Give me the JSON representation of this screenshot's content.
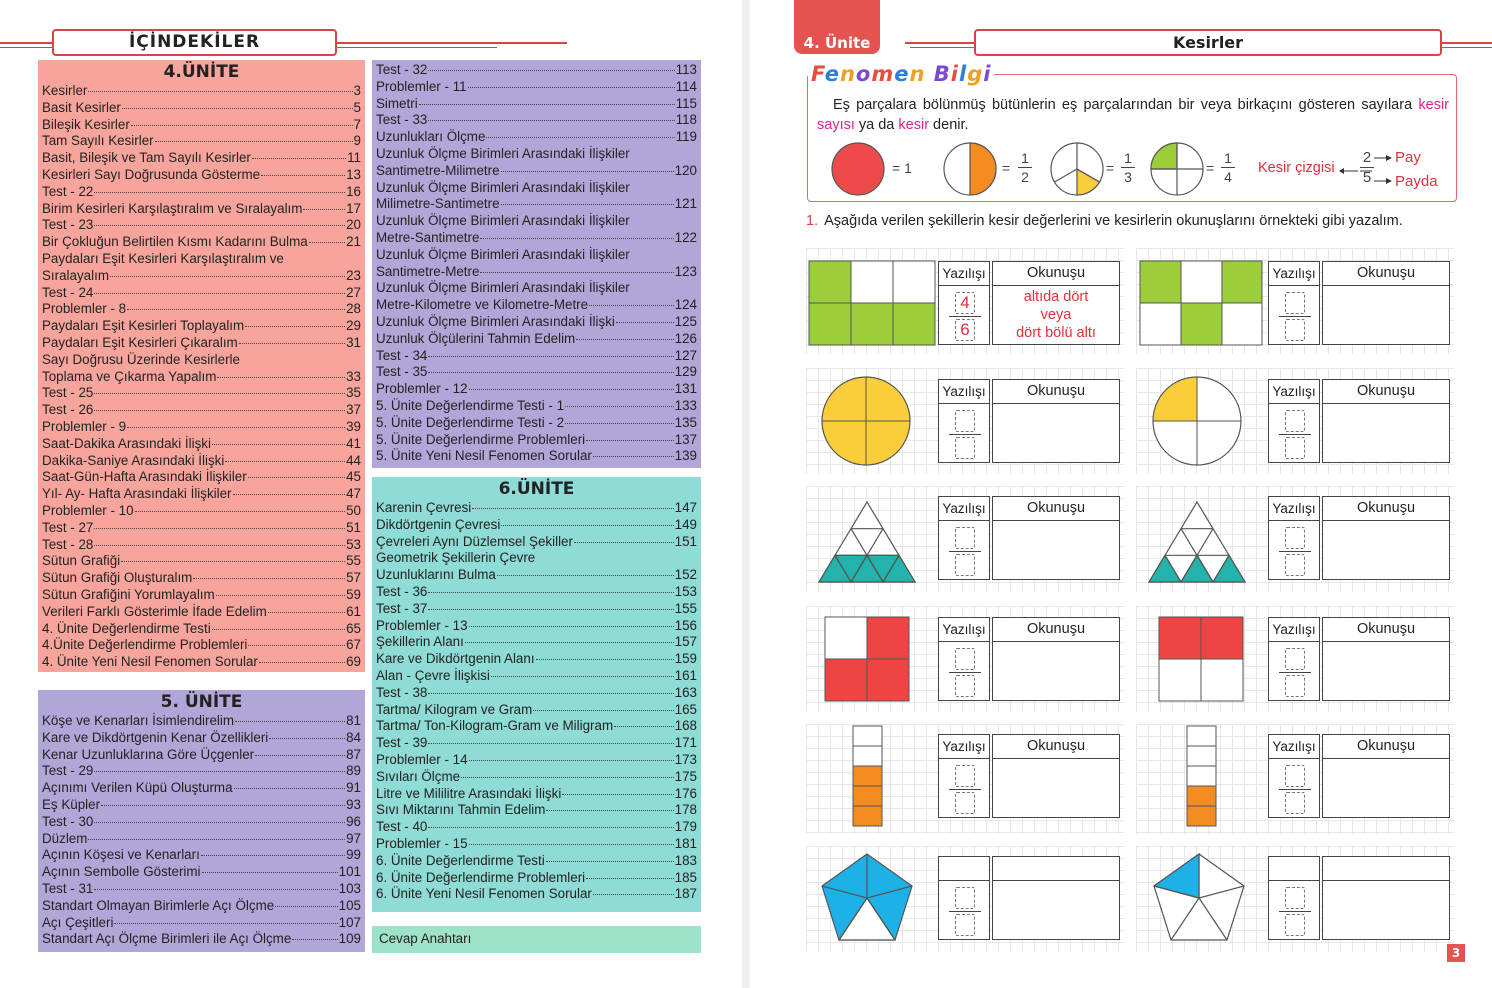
{
  "left_page": {
    "toc_title": "İÇİNDEKİLER",
    "unit4": {
      "title": "4.ÜNİTE",
      "entries": [
        {
          "t": "Kesirler",
          "p": "3"
        },
        {
          "t": "Basit Kesirler",
          "p": "5"
        },
        {
          "t": "Bileşik Kesirler",
          "p": "7"
        },
        {
          "t": "Tam Sayılı Kesirler",
          "p": "9"
        },
        {
          "t": "Basit, Bileşik ve Tam Sayılı Kesirler",
          "p": "11"
        },
        {
          "t": "Kesirleri Sayı Doğrusunda Gösterme",
          "p": "13"
        },
        {
          "t": "Test - 22",
          "p": "16"
        },
        {
          "t": "Birim Kesirleri Karşılaştıralım ve Sıralayalım",
          "p": "17"
        },
        {
          "t": "Test - 23",
          "p": "20"
        },
        {
          "t": "Bir Çokluğun Belirtilen Kısmı Kadarını Bulma",
          "p": "21"
        },
        {
          "t": "Paydaları Eşit Kesirleri Karşılaştıralım ve",
          "p": ""
        },
        {
          "t": "Sıralayalım",
          "p": "23"
        },
        {
          "t": "Test - 24",
          "p": "27"
        },
        {
          "t": "Problemler - 8",
          "p": "28"
        },
        {
          "t": "Paydaları Eşit Kesirleri Toplayalım",
          "p": "29"
        },
        {
          "t": "Paydaları Eşit Kesirleri Çıkaralım",
          "p": "31"
        },
        {
          "t": "Sayı Doğrusu Üzerinde Kesirlerle",
          "p": ""
        },
        {
          "t": "Toplama ve Çıkarma Yapalım",
          "p": "33"
        },
        {
          "t": "Test - 25",
          "p": "35"
        },
        {
          "t": "Test - 26",
          "p": "37"
        },
        {
          "t": "Problemler - 9",
          "p": "39"
        },
        {
          "t": "Saat-Dakika Arasındaki İlişki",
          "p": "41"
        },
        {
          "t": "Dakika-Saniye Arasındaki İlişki",
          "p": "44"
        },
        {
          "t": "Saat-Gün-Hafta Arasındaki İlişkiler",
          "p": "45"
        },
        {
          "t": "Yıl- Ay- Hafta Arasındaki İlişkiler",
          "p": "47"
        },
        {
          "t": "Problemler - 10",
          "p": "50"
        },
        {
          "t": "Test - 27",
          "p": "51"
        },
        {
          "t": "Test - 28",
          "p": "53"
        },
        {
          "t": "Sütun Grafiği",
          "p": "55"
        },
        {
          "t": "Sütun Grafiği Oluşturalım",
          "p": "57"
        },
        {
          "t": "Sütun Grafiğini Yorumlayalım",
          "p": "59"
        },
        {
          "t": "Verileri Farklı Gösterimle İfade Edelim",
          "p": "61"
        },
        {
          "t": "4. Ünite Değerlendirme Testi",
          "p": "65"
        },
        {
          "t": "4.Ünite Değerlendirme Problemleri",
          "p": "67"
        },
        {
          "t": "4. Ünite Yeni Nesil Fenomen Sorular",
          "p": "69"
        }
      ]
    },
    "unit5": {
      "title": "5. ÜNİTE",
      "entries": [
        {
          "t": "Köşe ve Kenarları İsimlendirelim",
          "p": "81"
        },
        {
          "t": "Kare ve Dikdörtgenin Kenar Özellikleri",
          "p": "84"
        },
        {
          "t": "Kenar Uzunluklarına Göre Üçgenler",
          "p": "87"
        },
        {
          "t": "Test - 29",
          "p": "89"
        },
        {
          "t": "Açınımı Verilen Küpü Oluşturma",
          "p": "91"
        },
        {
          "t": "Eş Küpler",
          "p": "93"
        },
        {
          "t": "Test - 30",
          "p": "96"
        },
        {
          "t": "Düzlem",
          "p": "97"
        },
        {
          "t": "Açının Köşesi ve Kenarları",
          "p": "99"
        },
        {
          "t": "Açının Sembolle Gösterimi",
          "p": "101"
        },
        {
          "t": "Test - 31",
          "p": "103"
        },
        {
          "t": "Standart Olmayan Birimlerle Açı Ölçme",
          "p": "105"
        },
        {
          "t": "Açı Çeşitleri",
          "p": "107"
        },
        {
          "t": "Standart Açı Ölçme Birimleri ile Açı Ölçme",
          "p": "109"
        }
      ]
    },
    "unit5_cont": {
      "entries": [
        {
          "t": "Test - 32",
          "p": "113"
        },
        {
          "t": "Problemler - 11",
          "p": "114"
        },
        {
          "t": "Simetri",
          "p": "115"
        },
        {
          "t": "Test - 33",
          "p": "118"
        },
        {
          "t": "Uzunlukları Ölçme",
          "p": "119"
        },
        {
          "t": "Uzunluk Ölçme Birimleri Arasındaki İlişkiler",
          "p": ""
        },
        {
          "t": "Santimetre-Milimetre",
          "p": "120"
        },
        {
          "t": "Uzunluk Ölçme Birimleri Arasındaki İlişkiler",
          "p": ""
        },
        {
          "t": "Milimetre-Santimetre",
          "p": "121"
        },
        {
          "t": "Uzunluk Ölçme Birimleri Arasındaki İlişkiler",
          "p": ""
        },
        {
          "t": "Metre-Santimetre",
          "p": "122"
        },
        {
          "t": "Uzunluk Ölçme Birimleri Arasındaki İlişkiler",
          "p": ""
        },
        {
          "t": "Santimetre-Metre",
          "p": "123"
        },
        {
          "t": "Uzunluk Ölçme Birimleri Arasındaki İlişkiler",
          "p": ""
        },
        {
          "t": "Metre-Kilometre ve Kilometre-Metre",
          "p": "124"
        },
        {
          "t": "Uzunluk Ölçme Birimleri Arasındaki İlişki",
          "p": "125"
        },
        {
          "t": "Uzunluk Ölçülerini Tahmin Edelim",
          "p": "126"
        },
        {
          "t": "Test - 34",
          "p": "127"
        },
        {
          "t": "Test - 35",
          "p": "129"
        },
        {
          "t": "Problemler - 12",
          "p": "131"
        },
        {
          "t": "5. Ünite Değerlendirme Testi - 1",
          "p": "133"
        },
        {
          "t": "5. Ünite Değerlendirme Testi - 2",
          "p": "135"
        },
        {
          "t": "5. Ünite Değerlendirme Problemleri",
          "p": "137"
        },
        {
          "t": "5. Ünite Yeni Nesil Fenomen Sorular",
          "p": "139"
        }
      ]
    },
    "unit6": {
      "title": "6.ÜNİTE",
      "entries": [
        {
          "t": "Karenin Çevresi",
          "p": "147"
        },
        {
          "t": "Dikdörtgenin Çevresi",
          "p": "149"
        },
        {
          "t": "Çevreleri Aynı Düzlemsel Şekiller",
          "p": "151"
        },
        {
          "t": "Geometrik Şekillerin Çevre",
          "p": ""
        },
        {
          "t": "Uzunluklarını Bulma",
          "p": "152"
        },
        {
          "t": "Test - 36",
          "p": "153"
        },
        {
          "t": "Test - 37",
          "p": "155"
        },
        {
          "t": "Problemler - 13",
          "p": "156"
        },
        {
          "t": "Şekillerin Alanı",
          "p": "157"
        },
        {
          "t": "Kare ve Dikdörtgenin Alanı",
          "p": "159"
        },
        {
          "t": "Alan - Çevre İlişkisi",
          "p": "161"
        },
        {
          "t": "Test - 38",
          "p": "163"
        },
        {
          "t": "Tartma/ Kilogram ve Gram",
          "p": "165"
        },
        {
          "t": "Tartma/ Ton-Kilogram-Gram ve Miligram",
          "p": "168"
        },
        {
          "t": "Test - 39",
          "p": "171"
        },
        {
          "t": "Problemler - 14",
          "p": "173"
        },
        {
          "t": "Sıvıları Ölçme",
          "p": "175"
        },
        {
          "t": "Litre ve Mililitre Arasındaki İlişki",
          "p": "176"
        },
        {
          "t": "Sıvı Miktarını Tahmin Edelim",
          "p": "178"
        },
        {
          "t": "Test - 40",
          "p": "179"
        },
        {
          "t": "Problemler - 15",
          "p": "181"
        },
        {
          "t": "6. Ünite Değerlendirme Testi",
          "p": "183"
        },
        {
          "t": "6. Ünite Değerlendirme Problemleri",
          "p": "185"
        },
        {
          "t": "6. Ünite Yeni Nesil Fenomen Sorular",
          "p": "187"
        }
      ]
    },
    "answer_key": "Cevap Anahtarı"
  },
  "right_page": {
    "unit_tab": "4. Ünite",
    "topic_title": "Kesirler",
    "fenomen": {
      "title_parts": [
        "F",
        "e",
        "n",
        "o",
        "m",
        "e",
        "n",
        " ",
        "B",
        "i",
        "l",
        "g",
        "i"
      ],
      "text_before": "Eş parçalara bölünmüş bütünlerin eş parçalarından bir veya birkaçını gösteren sayılara ",
      "term1": "kesir sayısı",
      "text_mid": " ya da ",
      "term2": "kesir",
      "text_after": " denir.",
      "eq1": "= 1",
      "eq": "=",
      "f1_num": "1",
      "f1_den": "2",
      "f2_num": "1",
      "f2_den": "3",
      "f3_num": "1",
      "f3_den": "4",
      "kesir_cizgisi": "Kesir çizgisi",
      "ex_num": "2",
      "ex_den": "5",
      "pay": "Pay",
      "payda": "Payda",
      "colors": {
        "red": "#ef4a4a",
        "orange": "#f58c22",
        "yellow": "#fbcd3a",
        "green": "#9ccd3b"
      }
    },
    "instruction_num": "1.",
    "instruction": "Aşağıda verilen şekillerin kesir değerlerini ve kesirlerin okunuşlarını örnekteki gibi yazalım.",
    "yazilisi": "Yazılışı",
    "okunusu": "Okunuşu",
    "example_answer": {
      "num": "4",
      "den": "6",
      "line1": "altıda dört",
      "line2": "veya",
      "line3": "dört bölü altı"
    },
    "page_number": "3",
    "colors": {
      "green": "#9ccd3b",
      "yellow": "#fbcd3a",
      "teal": "#22b3ad",
      "red": "#ef4444",
      "orange": "#f58c22",
      "blue": "#1eb1e8"
    }
  }
}
